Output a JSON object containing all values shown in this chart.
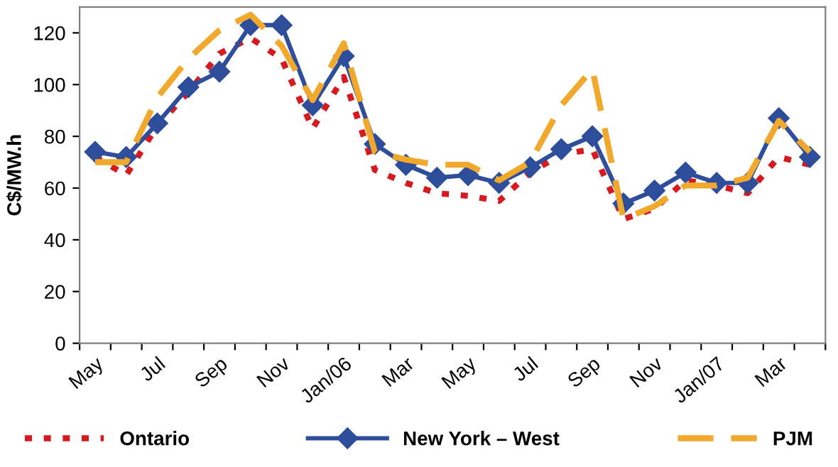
{
  "chart_data": {
    "type": "line",
    "ylabel": "C$/MW.h",
    "categories": [
      "May",
      null,
      "Jul",
      null,
      "Sep",
      null,
      "Nov",
      null,
      "Jan/06",
      null,
      "Mar",
      null,
      "May",
      null,
      "Jul",
      null,
      "Sep",
      null,
      "Nov",
      null,
      "Jan/07",
      null,
      "Mar",
      null
    ],
    "series": [
      {
        "name": "Ontario",
        "color": "#d71920",
        "line_style": "dotted",
        "marker": "none",
        "values": [
          72,
          65,
          84,
          97,
          112,
          118,
          110,
          83,
          103,
          67,
          62,
          58,
          57,
          55,
          66,
          73,
          75,
          48,
          52,
          63,
          61,
          58,
          72,
          69
        ]
      },
      {
        "name": "New York – West",
        "color": "#2e4d9b",
        "line_style": "solid",
        "marker": "diamond",
        "values": [
          74,
          72,
          85,
          99,
          105,
          123,
          123,
          92,
          111,
          77,
          69,
          64,
          65,
          62,
          68,
          75,
          80,
          54,
          59,
          66,
          62,
          62,
          87,
          72
        ]
      },
      {
        "name": "PJM",
        "color": "#f0a92c",
        "line_style": "dashed",
        "marker": "none",
        "values": [
          70,
          70,
          95,
          110,
          121,
          127,
          115,
          94,
          116,
          74,
          71,
          69,
          69,
          63,
          70,
          92,
          106,
          48,
          53,
          61,
          61,
          64,
          86,
          74
        ]
      }
    ],
    "ylim": [
      0,
      130
    ],
    "yticks": [
      0,
      20,
      40,
      60,
      80,
      100,
      120
    ],
    "grid": false,
    "legend": "bottom"
  }
}
